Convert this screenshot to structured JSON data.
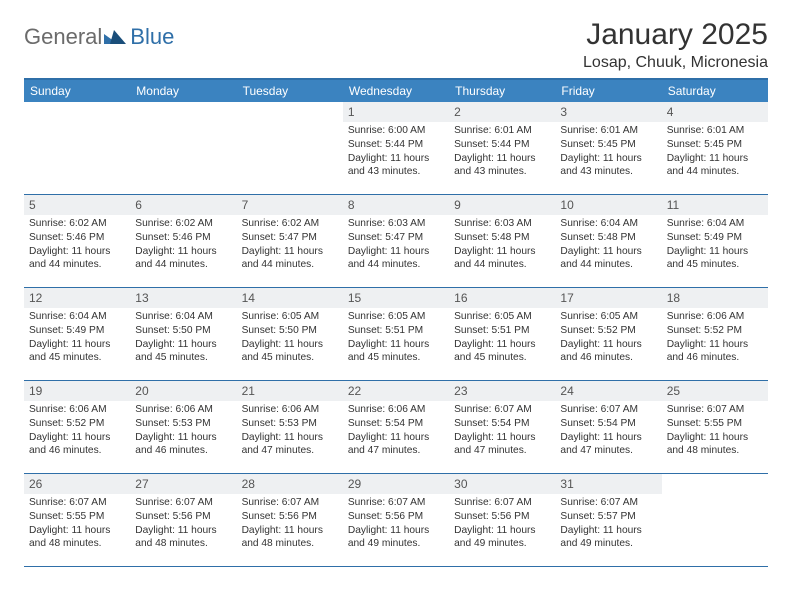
{
  "brand": {
    "text1": "General",
    "text2": "Blue"
  },
  "title": "January 2025",
  "location": "Losap, Chuuk, Micronesia",
  "colors": {
    "header_bg": "#3b83c0",
    "border": "#2f6fa8",
    "daynum_bg": "#eef0f2",
    "page_bg": "#ffffff",
    "logo_grey": "#6b6b6b",
    "logo_blue": "#2f6fa8"
  },
  "dow": [
    "Sunday",
    "Monday",
    "Tuesday",
    "Wednesday",
    "Thursday",
    "Friday",
    "Saturday"
  ],
  "weeks": [
    [
      {
        "n": "",
        "sr": "",
        "ss": "",
        "dl": ""
      },
      {
        "n": "",
        "sr": "",
        "ss": "",
        "dl": ""
      },
      {
        "n": "",
        "sr": "",
        "ss": "",
        "dl": ""
      },
      {
        "n": "1",
        "sr": "Sunrise: 6:00 AM",
        "ss": "Sunset: 5:44 PM",
        "dl": "Daylight: 11 hours and 43 minutes."
      },
      {
        "n": "2",
        "sr": "Sunrise: 6:01 AM",
        "ss": "Sunset: 5:44 PM",
        "dl": "Daylight: 11 hours and 43 minutes."
      },
      {
        "n": "3",
        "sr": "Sunrise: 6:01 AM",
        "ss": "Sunset: 5:45 PM",
        "dl": "Daylight: 11 hours and 43 minutes."
      },
      {
        "n": "4",
        "sr": "Sunrise: 6:01 AM",
        "ss": "Sunset: 5:45 PM",
        "dl": "Daylight: 11 hours and 44 minutes."
      }
    ],
    [
      {
        "n": "5",
        "sr": "Sunrise: 6:02 AM",
        "ss": "Sunset: 5:46 PM",
        "dl": "Daylight: 11 hours and 44 minutes."
      },
      {
        "n": "6",
        "sr": "Sunrise: 6:02 AM",
        "ss": "Sunset: 5:46 PM",
        "dl": "Daylight: 11 hours and 44 minutes."
      },
      {
        "n": "7",
        "sr": "Sunrise: 6:02 AM",
        "ss": "Sunset: 5:47 PM",
        "dl": "Daylight: 11 hours and 44 minutes."
      },
      {
        "n": "8",
        "sr": "Sunrise: 6:03 AM",
        "ss": "Sunset: 5:47 PM",
        "dl": "Daylight: 11 hours and 44 minutes."
      },
      {
        "n": "9",
        "sr": "Sunrise: 6:03 AM",
        "ss": "Sunset: 5:48 PM",
        "dl": "Daylight: 11 hours and 44 minutes."
      },
      {
        "n": "10",
        "sr": "Sunrise: 6:04 AM",
        "ss": "Sunset: 5:48 PM",
        "dl": "Daylight: 11 hours and 44 minutes."
      },
      {
        "n": "11",
        "sr": "Sunrise: 6:04 AM",
        "ss": "Sunset: 5:49 PM",
        "dl": "Daylight: 11 hours and 45 minutes."
      }
    ],
    [
      {
        "n": "12",
        "sr": "Sunrise: 6:04 AM",
        "ss": "Sunset: 5:49 PM",
        "dl": "Daylight: 11 hours and 45 minutes."
      },
      {
        "n": "13",
        "sr": "Sunrise: 6:04 AM",
        "ss": "Sunset: 5:50 PM",
        "dl": "Daylight: 11 hours and 45 minutes."
      },
      {
        "n": "14",
        "sr": "Sunrise: 6:05 AM",
        "ss": "Sunset: 5:50 PM",
        "dl": "Daylight: 11 hours and 45 minutes."
      },
      {
        "n": "15",
        "sr": "Sunrise: 6:05 AM",
        "ss": "Sunset: 5:51 PM",
        "dl": "Daylight: 11 hours and 45 minutes."
      },
      {
        "n": "16",
        "sr": "Sunrise: 6:05 AM",
        "ss": "Sunset: 5:51 PM",
        "dl": "Daylight: 11 hours and 45 minutes."
      },
      {
        "n": "17",
        "sr": "Sunrise: 6:05 AM",
        "ss": "Sunset: 5:52 PM",
        "dl": "Daylight: 11 hours and 46 minutes."
      },
      {
        "n": "18",
        "sr": "Sunrise: 6:06 AM",
        "ss": "Sunset: 5:52 PM",
        "dl": "Daylight: 11 hours and 46 minutes."
      }
    ],
    [
      {
        "n": "19",
        "sr": "Sunrise: 6:06 AM",
        "ss": "Sunset: 5:52 PM",
        "dl": "Daylight: 11 hours and 46 minutes."
      },
      {
        "n": "20",
        "sr": "Sunrise: 6:06 AM",
        "ss": "Sunset: 5:53 PM",
        "dl": "Daylight: 11 hours and 46 minutes."
      },
      {
        "n": "21",
        "sr": "Sunrise: 6:06 AM",
        "ss": "Sunset: 5:53 PM",
        "dl": "Daylight: 11 hours and 47 minutes."
      },
      {
        "n": "22",
        "sr": "Sunrise: 6:06 AM",
        "ss": "Sunset: 5:54 PM",
        "dl": "Daylight: 11 hours and 47 minutes."
      },
      {
        "n": "23",
        "sr": "Sunrise: 6:07 AM",
        "ss": "Sunset: 5:54 PM",
        "dl": "Daylight: 11 hours and 47 minutes."
      },
      {
        "n": "24",
        "sr": "Sunrise: 6:07 AM",
        "ss": "Sunset: 5:54 PM",
        "dl": "Daylight: 11 hours and 47 minutes."
      },
      {
        "n": "25",
        "sr": "Sunrise: 6:07 AM",
        "ss": "Sunset: 5:55 PM",
        "dl": "Daylight: 11 hours and 48 minutes."
      }
    ],
    [
      {
        "n": "26",
        "sr": "Sunrise: 6:07 AM",
        "ss": "Sunset: 5:55 PM",
        "dl": "Daylight: 11 hours and 48 minutes."
      },
      {
        "n": "27",
        "sr": "Sunrise: 6:07 AM",
        "ss": "Sunset: 5:56 PM",
        "dl": "Daylight: 11 hours and 48 minutes."
      },
      {
        "n": "28",
        "sr": "Sunrise: 6:07 AM",
        "ss": "Sunset: 5:56 PM",
        "dl": "Daylight: 11 hours and 48 minutes."
      },
      {
        "n": "29",
        "sr": "Sunrise: 6:07 AM",
        "ss": "Sunset: 5:56 PM",
        "dl": "Daylight: 11 hours and 49 minutes."
      },
      {
        "n": "30",
        "sr": "Sunrise: 6:07 AM",
        "ss": "Sunset: 5:56 PM",
        "dl": "Daylight: 11 hours and 49 minutes."
      },
      {
        "n": "31",
        "sr": "Sunrise: 6:07 AM",
        "ss": "Sunset: 5:57 PM",
        "dl": "Daylight: 11 hours and 49 minutes."
      },
      {
        "n": "",
        "sr": "",
        "ss": "",
        "dl": ""
      }
    ]
  ]
}
